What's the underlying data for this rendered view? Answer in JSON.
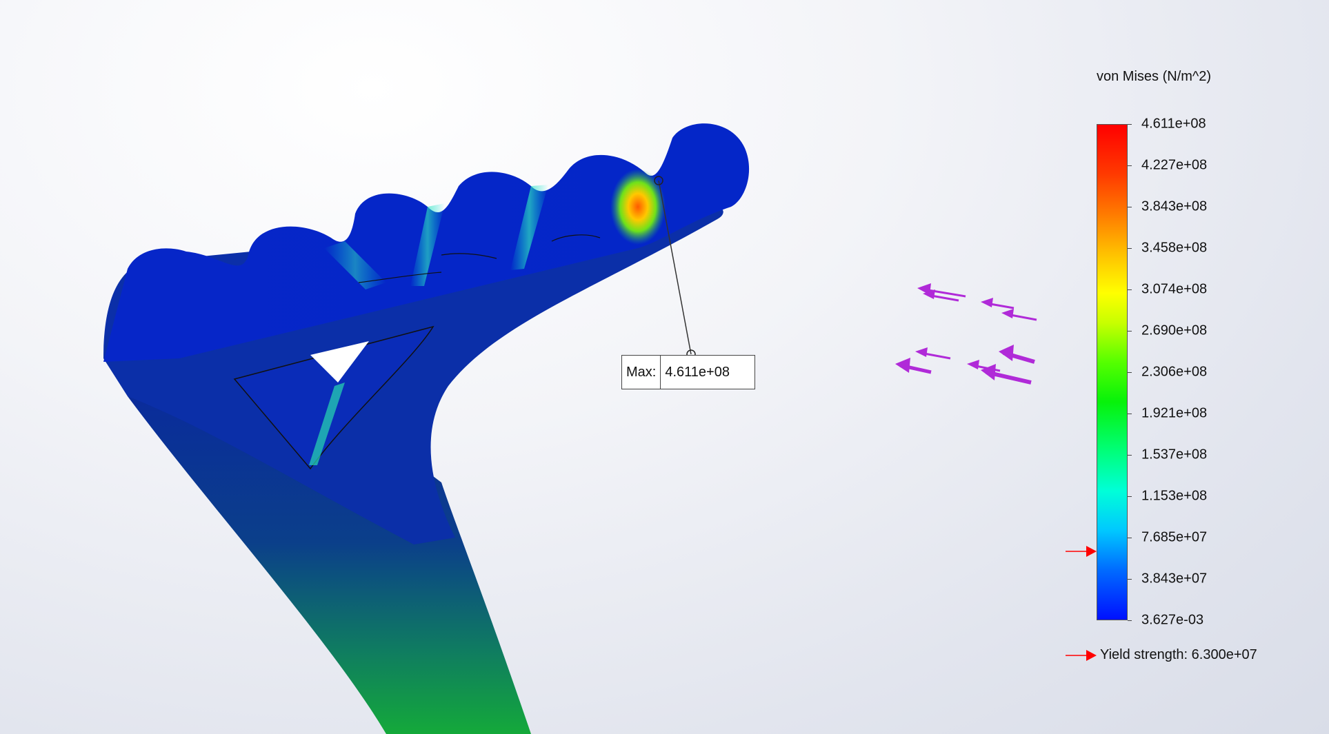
{
  "legend": {
    "title": "von Mises (N/m^2)",
    "ticks": [
      "4.611e+08",
      "4.227e+08",
      "3.843e+08",
      "3.458e+08",
      "3.074e+08",
      "2.690e+08",
      "2.306e+08",
      "1.921e+08",
      "1.537e+08",
      "1.153e+08",
      "7.685e+07",
      "3.843e+07",
      "3.627e-03"
    ],
    "yield_label": "Yield strength: 6.300e+07"
  },
  "probe": {
    "label": "Max:",
    "value": "4.611e+08"
  },
  "colors": {
    "arrow_load": "#b02ad8",
    "yield_marker": "#ff0000",
    "max_stress": "#ff0000",
    "min_stress": "#0010ff"
  }
}
